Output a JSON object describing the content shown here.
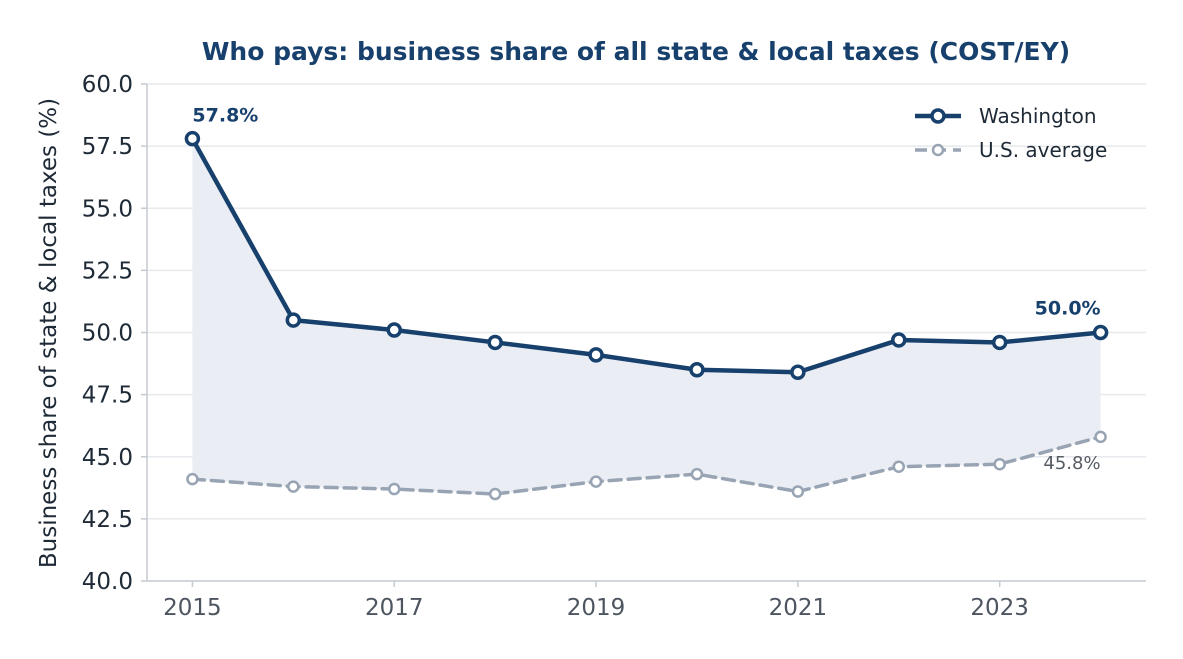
{
  "chart_data": {
    "type": "line",
    "title": "Who pays: business share of all state & local taxes (COST/EY)",
    "ylabel": "Business share of state & local taxes (%)",
    "xlabel": "",
    "ylim": [
      40.0,
      60.0
    ],
    "xlim": [
      2014.55,
      2024.45
    ],
    "yticks": [
      "40.0",
      "42.5",
      "45.0",
      "47.5",
      "50.0",
      "52.5",
      "55.0",
      "57.5",
      "60.0"
    ],
    "ytick_values": [
      40.0,
      42.5,
      45.0,
      47.5,
      50.0,
      52.5,
      55.0,
      57.5,
      60.0
    ],
    "xticks": [
      "2015",
      "2017",
      "2019",
      "2021",
      "2023"
    ],
    "xtick_values": [
      2015,
      2017,
      2019,
      2021,
      2023
    ],
    "grid": "horizontal",
    "legend_position": "top-right",
    "x": [
      2015,
      2016,
      2017,
      2018,
      2019,
      2020,
      2021,
      2022,
      2023,
      2024
    ],
    "series": [
      {
        "name": "Washington",
        "values": [
          57.8,
          50.5,
          50.1,
          49.6,
          49.1,
          48.5,
          48.4,
          49.7,
          49.6,
          50.0
        ],
        "color": "#17406d",
        "style": "solid"
      },
      {
        "name": "U.S. average",
        "values": [
          44.1,
          43.8,
          43.7,
          43.5,
          44.0,
          44.3,
          43.6,
          44.6,
          44.7,
          45.8
        ],
        "color": "#98a4b3",
        "style": "dashed"
      }
    ],
    "annotations": [
      {
        "text": "57.8%",
        "series": "Washington",
        "x": 2015,
        "y": 57.8
      },
      {
        "text": "50.0%",
        "series": "Washington",
        "x": 2024,
        "y": 50.0
      },
      {
        "text": "45.8%",
        "series": "U.S. average",
        "x": 2024,
        "y": 45.8
      }
    ],
    "colors": {
      "title": "#17406d",
      "fill": "#eaeef4",
      "grid": "#e6e9ed",
      "axis": "#c5cbd3"
    }
  }
}
